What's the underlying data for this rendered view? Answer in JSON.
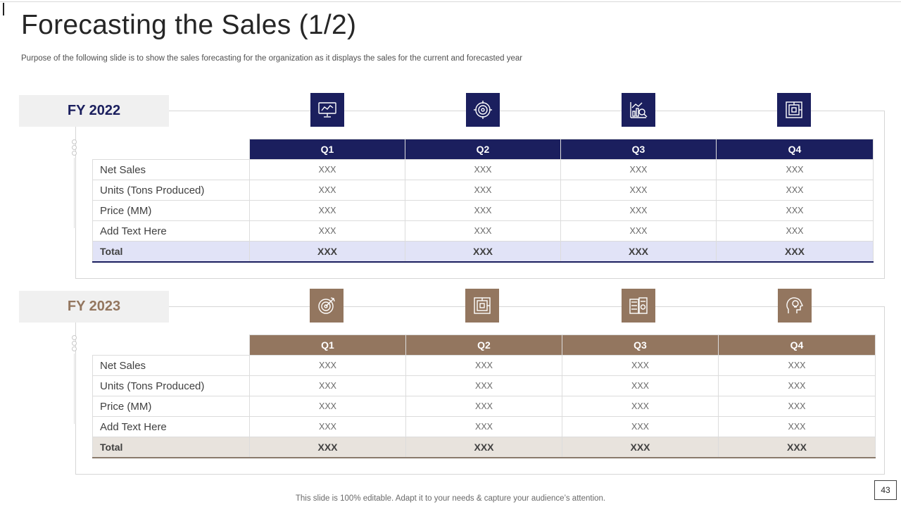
{
  "title": "Forecasting the Sales (1/2)",
  "subtitle": "Purpose of the following slide is to show the sales forecasting for the organization as it displays the sales for the current and forecasted year",
  "colors": {
    "fy2022_accent": "#1b1f5e",
    "fy2023_accent": "#93765f",
    "fy2022_total_bg": "#e1e3f7",
    "fy2023_total_bg": "#e8e3dd"
  },
  "fy2022": {
    "label": "FY 2022",
    "icons": [
      "monitor-chart-icon",
      "target-gear-icon",
      "chart-magnifier-icon",
      "maze-icon"
    ],
    "headers": [
      "Q1",
      "Q2",
      "Q3",
      "Q4"
    ],
    "rows": [
      {
        "label": "Net Sales",
        "values": [
          "XXX",
          "XXX",
          "XXX",
          "XXX"
        ]
      },
      {
        "label": "Units (Tons Produced)",
        "values": [
          "XXX",
          "XXX",
          "XXX",
          "XXX"
        ]
      },
      {
        "label": "Price (MM)",
        "values": [
          "XXX",
          "XXX",
          "XXX",
          "XXX"
        ]
      },
      {
        "label": "Add Text Here",
        "values": [
          "XXX",
          "XXX",
          "XXX",
          "XXX"
        ]
      }
    ],
    "total": {
      "label": "Total",
      "values": [
        "XXX",
        "XXX",
        "XXX",
        "XXX"
      ]
    }
  },
  "fy2023": {
    "label": "FY 2023",
    "icons": [
      "target-arrow-icon",
      "maze-icon",
      "calculator-document-icon",
      "head-lightbulb-icon"
    ],
    "headers": [
      "Q1",
      "Q2",
      "Q3",
      "Q4"
    ],
    "rows": [
      {
        "label": "Net Sales",
        "values": [
          "XXX",
          "XXX",
          "XXX",
          "XXX"
        ]
      },
      {
        "label": "Units (Tons Produced)",
        "values": [
          "XXX",
          "XXX",
          "XXX",
          "XXX"
        ]
      },
      {
        "label": "Price (MM)",
        "values": [
          "XXX",
          "XXX",
          "XXX",
          "XXX"
        ]
      },
      {
        "label": "Add Text Here",
        "values": [
          "XXX",
          "XXX",
          "XXX",
          "XXX"
        ]
      }
    ],
    "total": {
      "label": "Total",
      "values": [
        "XXX",
        "XXX",
        "XXX",
        "XXX"
      ]
    }
  },
  "footer": "This slide is 100% editable. Adapt it to your needs & capture your audience’s attention.",
  "page_number": "43"
}
